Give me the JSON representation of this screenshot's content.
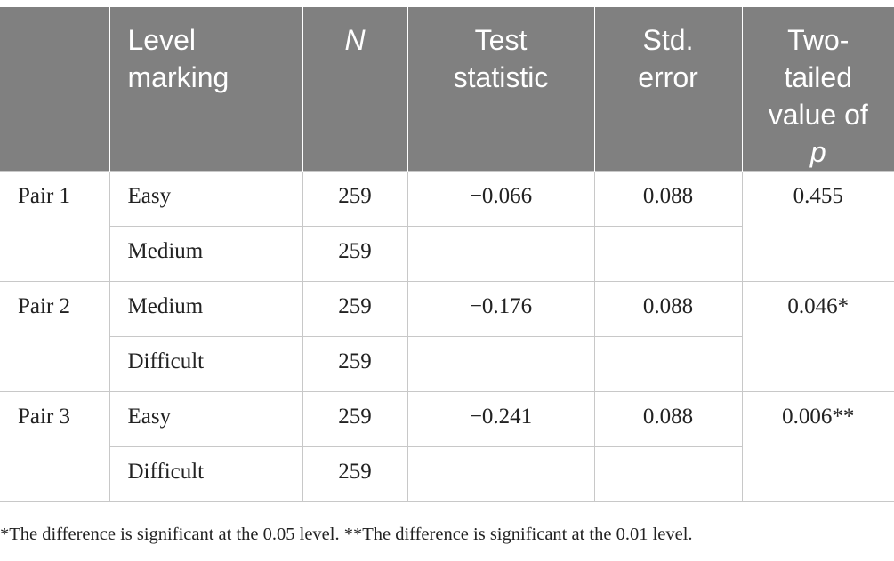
{
  "table": {
    "header": [
      "Level marking",
      "N",
      "Test statistic",
      "Std. error",
      "Two-tailed value of",
      "p"
    ],
    "pairs": [
      {
        "pair": "Pair 1",
        "rows": [
          {
            "level": "Easy",
            "n": 259
          },
          {
            "level": "Medium",
            "n": 259
          }
        ],
        "test": "−0.066",
        "se": "0.088",
        "p": "0.455"
      },
      {
        "pair": "Pair 2",
        "rows": [
          {
            "level": "Medium",
            "n": 259
          },
          {
            "level": "Difficult",
            "n": 259
          }
        ],
        "test": "−0.176",
        "se": "0.088",
        "p": "0.046*"
      },
      {
        "pair": "Pair 3",
        "rows": [
          {
            "level": "Easy",
            "n": 259
          },
          {
            "level": "Difficult",
            "n": 259
          }
        ],
        "test": "−0.241",
        "se": "0.088",
        "p": "0.006**"
      }
    ]
  },
  "footnote": "*The difference is significant at the 0.05 level. **The difference is significant at the 0.01 level."
}
